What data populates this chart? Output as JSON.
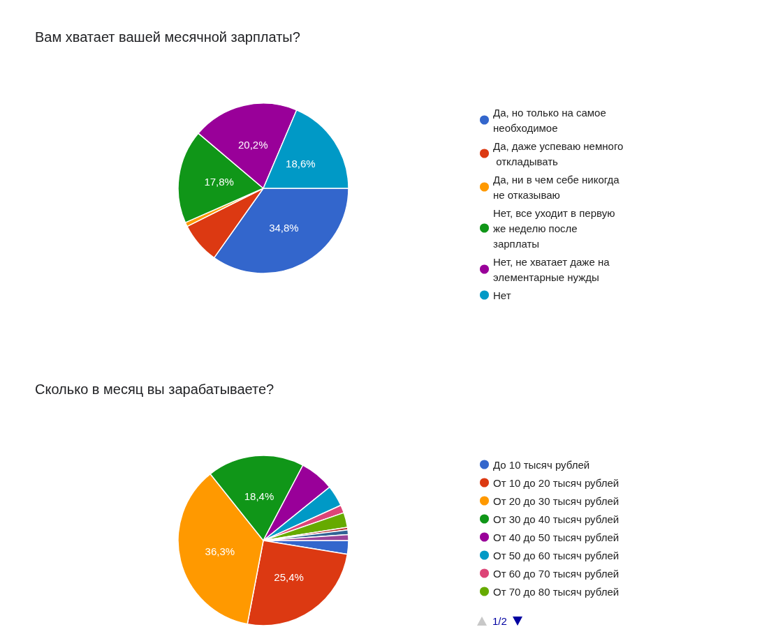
{
  "chart_data": [
    {
      "type": "pie",
      "title": "Вам хватает вашей месячной зарплаты?",
      "categories": [
        "Да, но только на самое необходимое",
        "Да, даже успеваю немного откладывать",
        "Да, ни в чем себе никогда не отказываю",
        "Нет, все уходит в первую же неделю после зарплаты",
        "Нет, не хватает даже на элементарные нужды",
        "Нет"
      ],
      "values": [
        34.8,
        7.8,
        0.8,
        17.8,
        20.2,
        18.6
      ],
      "colors": [
        "#3366cc",
        "#dc3912",
        "#ff9900",
        "#109618",
        "#990099",
        "#0099c6"
      ],
      "value_labels": [
        "34,8%",
        null,
        null,
        "17,8%",
        "20,2%",
        "18,6%"
      ],
      "legend": "right"
    },
    {
      "type": "pie",
      "title": "Сколько в месяц вы зарабатываете?",
      "categories": [
        "До 10 тысяч рублей",
        "От 10 до 20 тысяч рублей",
        "От 20 до 30 тысяч рублей",
        "От 30 до 40 тысяч рублей",
        "От 40 до 50 тысяч рублей",
        "От 50 до 60 тысяч рублей",
        "От 60 до 70 тысяч рублей",
        "От 70 до 80 тысяч рублей",
        null,
        null,
        null
      ],
      "values": [
        2.6,
        25.4,
        36.3,
        18.4,
        6.5,
        4.0,
        1.5,
        2.8,
        0.5,
        0.9,
        1.1
      ],
      "colors": [
        "#3366cc",
        "#dc3912",
        "#ff9900",
        "#109618",
        "#990099",
        "#0099c6",
        "#dd4477",
        "#66aa00",
        "#b82e2e",
        "#316395",
        "#994499"
      ],
      "value_labels": [
        null,
        "25,4%",
        "36,3%",
        "18,4%",
        null,
        null,
        null,
        null,
        null,
        null,
        null
      ],
      "annotations": [
        "1/2"
      ],
      "legend": "right"
    }
  ]
}
